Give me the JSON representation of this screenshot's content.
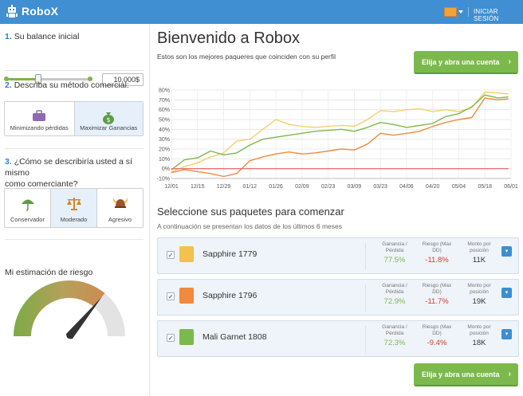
{
  "app": {
    "title": "RoboX",
    "login_label": "INICIAR SESIÓN"
  },
  "sidebar": {
    "step1": {
      "num": "1.",
      "title": "Su balance inicial",
      "balance_value": "10,000$",
      "slider_fraction": 0.38
    },
    "step2": {
      "num": "2.",
      "title": "Describa su método comercial:",
      "options": [
        {
          "label": "Minimizando pérdidas",
          "icon": "briefcase-icon",
          "selected": false
        },
        {
          "label": "Maximizar Ganancias",
          "icon": "money-bag-icon",
          "selected": true
        }
      ]
    },
    "step3": {
      "num": "3.",
      "title_line1": "¿Cómo se describiría usted a sí mismo",
      "title_line2": "como comerciante?",
      "options": [
        {
          "label": "Conservador",
          "icon": "umbrella-icon",
          "selected": false
        },
        {
          "label": "Moderado",
          "icon": "scales-icon",
          "selected": true
        },
        {
          "label": "Agresivo",
          "icon": "viking-helmet-icon",
          "selected": false
        }
      ]
    },
    "risk": {
      "title": "Mi estimación de riesgo",
      "level": 0.72
    }
  },
  "main": {
    "title": "Bienvenido a Robox",
    "subtitle": "Estos son los mejores paqueres que coinciden con su perfil",
    "cta_label": "Elija y abra una cuenta",
    "packages_title": "Seleccione sus paquetes para comenzar",
    "packages_note": "A continuación se presentan los datos de los últimos 6 meses",
    "stat_labels": {
      "gain_1": "Ganancia /",
      "gain_2": "Pérdida",
      "risk_1": "Riesgo (Max",
      "risk_2": "DD)",
      "amount_1": "Monto por",
      "amount_2": "posición"
    },
    "packages": [
      {
        "name": "Sapphire 1779",
        "gain": "77.5%",
        "risk": "-11.8%",
        "amount": "11K",
        "color": "#f2c24d",
        "checked": true
      },
      {
        "name": "Sapphire 1796",
        "gain": "72.9%",
        "risk": "-11.7%",
        "amount": "19K",
        "color": "#f08a3c",
        "checked": true
      },
      {
        "name": "Mali Garnet 1808",
        "gain": "72.3%",
        "risk": "-9.4%",
        "amount": "18K",
        "color": "#7cb94d",
        "checked": true
      }
    ]
  },
  "colors": {
    "accent": "#3f8fd2",
    "cta": "#7cb94d",
    "gain": "#7cb94d",
    "risk": "#d9392b",
    "yellow": "#f5cf6a",
    "orange": "#f08a3c",
    "green": "#7cb94d",
    "red": "#e57373"
  },
  "chart_data": {
    "type": "line",
    "categories": [
      "12/01",
      "12/15",
      "12/29",
      "01/12",
      "01/26",
      "02/09",
      "02/23",
      "03/09",
      "03/23",
      "04/06",
      "04/20",
      "05/04",
      "05/18",
      "06/01"
    ],
    "yticks": [
      "80%",
      "70%",
      "60%",
      "50%",
      "40%",
      "30%",
      "20%",
      "10%",
      "0%",
      "-10%"
    ],
    "ylim": [
      -10,
      80
    ],
    "series": [
      {
        "color": "#f5cf6a",
        "x": [
          0,
          0.5,
          1,
          1.5,
          2,
          2.5,
          3,
          3.5,
          4,
          4.5,
          5,
          5.5,
          6,
          6.5,
          7,
          7.5,
          8,
          8.5,
          9,
          9.5,
          10,
          10.5,
          11,
          11.5,
          12,
          12.5,
          12.9
        ],
        "values": [
          -3,
          2,
          6,
          12,
          16,
          28,
          30,
          40,
          50,
          45,
          43,
          42,
          43,
          44,
          43,
          50,
          59,
          58,
          60,
          61,
          58,
          60,
          58,
          62,
          78,
          77,
          76
        ]
      },
      {
        "color": "#7cb94d",
        "x": [
          0,
          0.5,
          1,
          1.5,
          2,
          2.5,
          3,
          3.5,
          4,
          4.5,
          5,
          5.5,
          6,
          6.5,
          7,
          7.5,
          8,
          8.5,
          9,
          9.5,
          10,
          10.5,
          11,
          11.5,
          12,
          12.5,
          12.9
        ],
        "values": [
          -1,
          9,
          11,
          18,
          14,
          16,
          24,
          30,
          32,
          34,
          36,
          38,
          39,
          40,
          38,
          42,
          47,
          45,
          42,
          44,
          46,
          53,
          56,
          63,
          75,
          72,
          73
        ]
      },
      {
        "color": "#f08a3c",
        "x": [
          0,
          0.5,
          1,
          1.5,
          2,
          2.5,
          3,
          3.5,
          4,
          4.5,
          5,
          5.5,
          6,
          6.5,
          7,
          7.5,
          8,
          8.5,
          9,
          9.5,
          10,
          10.5,
          11,
          11.5,
          12,
          12.5,
          12.9
        ],
        "values": [
          -4,
          -1,
          -3,
          -5,
          -8,
          -5,
          8,
          12,
          15,
          17,
          15,
          16,
          18,
          20,
          19,
          25,
          36,
          34,
          36,
          38,
          43,
          47,
          50,
          52,
          72,
          70,
          71
        ]
      },
      {
        "color": "#e57373",
        "x": [
          0,
          12.9
        ],
        "values": [
          0,
          0
        ]
      }
    ]
  }
}
